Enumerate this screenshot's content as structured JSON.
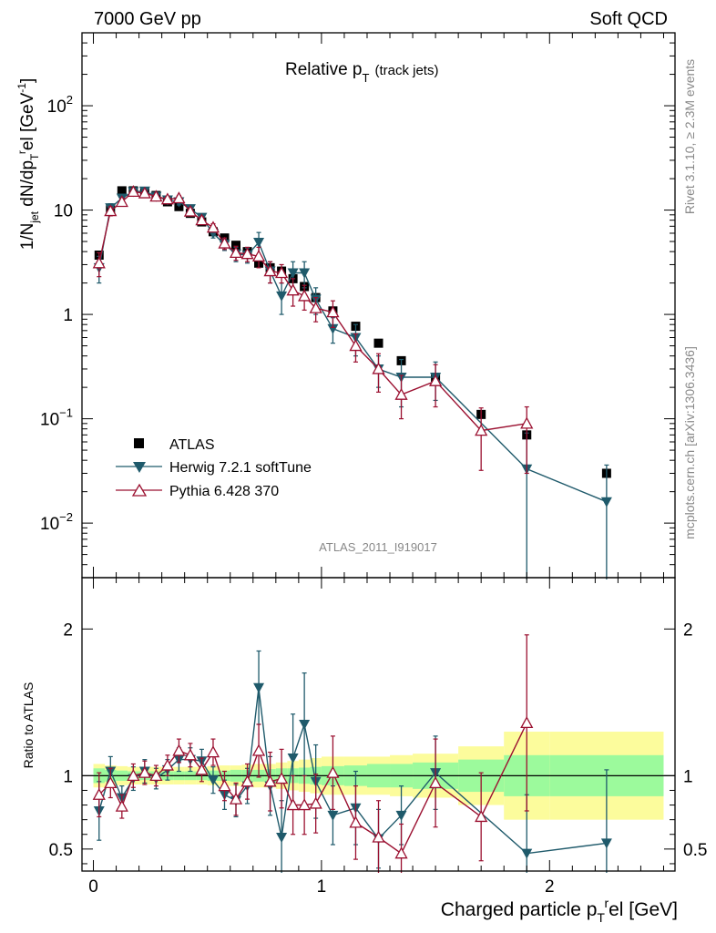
{
  "header": {
    "left": "7000 GeV pp",
    "right": "Soft QCD"
  },
  "side": {
    "rivet": "Rivet 3.1.10, ≥ 2.3M events",
    "mcplots": "mcplots.cern.ch [arXiv:1306.3436]"
  },
  "colors": {
    "atlas": "#000000",
    "herwig": "#1f5a6b",
    "pythia": "#9b1030",
    "band_inner": "#9cfa9c",
    "band_outer": "#fcfc9c"
  },
  "chart_data": [
    {
      "type": "scatter",
      "title": "Relative p_T (track jets)",
      "title_main": "Relative p",
      "title_sub": "T",
      "title_tail": "(track jets)",
      "ylabel": "1/N_jet dN/dp_T^rel [GeV^-1]",
      "yscale": "log",
      "ylim": [
        0.003,
        500
      ],
      "xlim": [
        -0.05,
        2.55
      ],
      "yticks": [
        {
          "value": 0.01,
          "base": "10",
          "exp": "−2"
        },
        {
          "value": 0.1,
          "base": "10",
          "exp": "−1"
        },
        {
          "value": 1,
          "base": "1",
          "exp": ""
        },
        {
          "value": 10,
          "base": "10",
          "exp": ""
        },
        {
          "value": 100,
          "base": "10",
          "exp": "2"
        }
      ],
      "watermark": "ATLAS_2011_I919017",
      "legend_position": "lower-left",
      "series": [
        {
          "name": "ATLAS",
          "marker": "square",
          "x": [
            0.025,
            0.075,
            0.125,
            0.175,
            0.225,
            0.275,
            0.325,
            0.375,
            0.425,
            0.475,
            0.525,
            0.575,
            0.625,
            0.675,
            0.725,
            0.775,
            0.825,
            0.875,
            0.925,
            0.975,
            1.05,
            1.15,
            1.25,
            1.35,
            1.5,
            1.7,
            1.9,
            2.25
          ],
          "y": [
            3.7,
            10.2,
            15.3,
            15.3,
            14.7,
            13.8,
            12.0,
            10.8,
            9.3,
            7.7,
            6.2,
            5.4,
            4.6,
            4.0,
            3.1,
            2.8,
            2.6,
            2.2,
            1.85,
            1.45,
            1.08,
            0.77,
            0.53,
            0.36,
            0.25,
            0.11,
            0.07,
            0.03
          ]
        },
        {
          "name": "Herwig 7.2.1 softTune",
          "marker": "triangle-down",
          "x": [
            0.025,
            0.075,
            0.125,
            0.175,
            0.225,
            0.275,
            0.325,
            0.375,
            0.425,
            0.475,
            0.525,
            0.575,
            0.625,
            0.675,
            0.725,
            0.775,
            0.825,
            0.875,
            0.925,
            0.975,
            1.05,
            1.15,
            1.25,
            1.35,
            1.5,
            1.9,
            2.25
          ],
          "y": [
            2.8,
            10.5,
            13.0,
            15.0,
            15.2,
            13.5,
            12.5,
            12.0,
            10.3,
            8.5,
            6.0,
            4.7,
            3.8,
            3.7,
            4.9,
            2.6,
            1.5,
            2.5,
            2.5,
            1.4,
            0.73,
            0.6,
            0.3,
            0.25,
            0.25,
            0.033,
            0.016
          ],
          "err_lo": [
            0.8,
            1.0,
            1.0,
            1.0,
            1.0,
            0.9,
            0.8,
            0.8,
            0.8,
            0.7,
            0.6,
            0.6,
            0.6,
            0.6,
            1.2,
            0.6,
            0.5,
            0.7,
            0.7,
            0.4,
            0.2,
            0.2,
            0.1,
            0.12,
            0.1,
            0.033,
            0.016
          ],
          "err_hi": [
            0.8,
            1.0,
            1.0,
            1.0,
            1.0,
            0.9,
            0.8,
            0.8,
            0.8,
            0.7,
            0.6,
            0.6,
            0.6,
            0.6,
            1.2,
            0.6,
            0.5,
            0.7,
            0.7,
            0.4,
            0.2,
            0.2,
            0.1,
            0.12,
            0.1,
            0.04,
            0.02
          ]
        },
        {
          "name": "Pythia 6.428 370",
          "marker": "triangle-up-open",
          "x": [
            0.025,
            0.075,
            0.125,
            0.175,
            0.225,
            0.275,
            0.325,
            0.375,
            0.425,
            0.475,
            0.525,
            0.575,
            0.625,
            0.675,
            0.725,
            0.775,
            0.825,
            0.875,
            0.925,
            0.975,
            1.05,
            1.15,
            1.25,
            1.35,
            1.5,
            1.7,
            1.9
          ],
          "y": [
            3.1,
            9.8,
            12.0,
            15.0,
            14.5,
            13.5,
            12.7,
            13.0,
            9.7,
            8.0,
            6.8,
            4.8,
            3.9,
            3.8,
            3.6,
            2.6,
            2.5,
            1.7,
            1.5,
            1.15,
            1.05,
            0.5,
            0.3,
            0.17,
            0.23,
            0.077,
            0.09
          ],
          "err_lo": [
            0.8,
            1.0,
            1.0,
            1.0,
            1.0,
            0.9,
            0.8,
            0.8,
            0.8,
            0.7,
            0.6,
            0.6,
            0.6,
            0.6,
            0.8,
            0.6,
            0.5,
            0.5,
            0.4,
            0.3,
            0.3,
            0.15,
            0.12,
            0.07,
            0.1,
            0.045,
            0.06
          ],
          "err_hi": [
            0.8,
            1.0,
            1.0,
            1.0,
            1.0,
            0.9,
            0.8,
            0.8,
            0.8,
            0.7,
            0.6,
            0.6,
            0.6,
            0.6,
            0.8,
            0.6,
            0.5,
            0.5,
            0.4,
            0.3,
            0.3,
            0.15,
            0.12,
            0.09,
            0.1,
            0.05,
            0.04
          ]
        }
      ]
    },
    {
      "type": "scatter",
      "title": "Ratio to ATLAS",
      "ylabel": "Ratio to ATLAS",
      "xlabel": "Charged particle p_T^rel [GeV]",
      "xlabel_main": "Charged particle p",
      "xlabel_sub": "T",
      "xlabel_sup": "r",
      "xlabel_tail": "el [GeV]",
      "ylim": [
        0.35,
        2.35
      ],
      "xlim": [
        -0.05,
        2.55
      ],
      "yticks": [
        0.5,
        1,
        2
      ],
      "xticks": [
        0,
        1,
        2
      ],
      "reference_line": 1,
      "bands": {
        "edges": [
          0.0,
          0.05,
          0.1,
          0.15,
          0.2,
          0.25,
          0.3,
          0.35,
          0.4,
          0.45,
          0.5,
          0.55,
          0.6,
          0.65,
          0.7,
          0.75,
          0.8,
          0.85,
          0.9,
          0.95,
          1.0,
          1.1,
          1.2,
          1.3,
          1.4,
          1.6,
          1.8,
          2.0,
          2.5
        ],
        "inner": [
          0.05,
          0.04,
          0.035,
          0.03,
          0.03,
          0.03,
          0.03,
          0.03,
          0.03,
          0.03,
          0.035,
          0.035,
          0.04,
          0.04,
          0.04,
          0.045,
          0.05,
          0.05,
          0.055,
          0.06,
          0.065,
          0.07,
          0.08,
          0.08,
          0.09,
          0.11,
          0.14,
          0.14
        ],
        "outer": [
          0.08,
          0.07,
          0.065,
          0.06,
          0.06,
          0.06,
          0.06,
          0.06,
          0.06,
          0.06,
          0.065,
          0.07,
          0.07,
          0.075,
          0.08,
          0.08,
          0.09,
          0.1,
          0.11,
          0.12,
          0.13,
          0.13,
          0.13,
          0.14,
          0.15,
          0.2,
          0.3,
          0.3
        ]
      },
      "series": [
        {
          "name": "Herwig 7.2.1 softTune",
          "marker": "triangle-down",
          "x": [
            0.025,
            0.075,
            0.125,
            0.175,
            0.225,
            0.275,
            0.325,
            0.375,
            0.425,
            0.475,
            0.525,
            0.575,
            0.625,
            0.675,
            0.725,
            0.775,
            0.825,
            0.875,
            0.925,
            0.975,
            1.05,
            1.15,
            1.25,
            1.35,
            1.5,
            1.9,
            2.25
          ],
          "y": [
            0.76,
            1.03,
            0.85,
            0.98,
            1.03,
            0.98,
            1.04,
            1.11,
            1.11,
            1.1,
            0.97,
            0.87,
            0.83,
            0.93,
            1.6,
            0.93,
            0.58,
            1.12,
            1.35,
            0.96,
            0.73,
            0.78,
            0.57,
            0.73,
            1.02,
            0.47,
            0.54
          ],
          "err_lo": [
            0.2,
            0.1,
            0.08,
            0.08,
            0.08,
            0.07,
            0.07,
            0.08,
            0.08,
            0.08,
            0.09,
            0.1,
            0.11,
            0.12,
            0.25,
            0.2,
            0.25,
            0.3,
            0.35,
            0.25,
            0.2,
            0.25,
            0.2,
            0.2,
            0.25,
            0.12,
            0.2
          ],
          "err_hi": [
            0.2,
            0.1,
            0.08,
            0.08,
            0.08,
            0.07,
            0.07,
            0.08,
            0.08,
            0.08,
            0.09,
            0.1,
            0.11,
            0.12,
            0.25,
            0.2,
            0.25,
            0.3,
            0.35,
            0.25,
            0.2,
            0.25,
            0.2,
            0.2,
            0.25,
            0.4,
            0.5
          ]
        },
        {
          "name": "Pythia 6.428 370",
          "marker": "triangle-up-open",
          "x": [
            0.025,
            0.075,
            0.125,
            0.175,
            0.225,
            0.275,
            0.325,
            0.375,
            0.425,
            0.475,
            0.525,
            0.575,
            0.625,
            0.675,
            0.725,
            0.775,
            0.825,
            0.875,
            0.925,
            0.975,
            1.05,
            1.15,
            1.25,
            1.35,
            1.5,
            1.7,
            1.9
          ],
          "y": [
            0.87,
            0.95,
            0.79,
            1.0,
            1.02,
            1.0,
            1.07,
            1.17,
            1.14,
            1.04,
            1.16,
            0.93,
            0.84,
            0.96,
            1.17,
            0.96,
            0.98,
            0.8,
            0.8,
            0.81,
            1.02,
            0.68,
            0.58,
            0.47,
            0.95,
            0.72,
            1.36
          ],
          "err_lo": [
            0.15,
            0.1,
            0.08,
            0.08,
            0.08,
            0.07,
            0.07,
            0.08,
            0.08,
            0.08,
            0.09,
            0.1,
            0.11,
            0.12,
            0.18,
            0.2,
            0.2,
            0.2,
            0.2,
            0.2,
            0.25,
            0.25,
            0.25,
            0.2,
            0.3,
            0.3,
            0.6
          ],
          "err_hi": [
            0.15,
            0.1,
            0.08,
            0.08,
            0.08,
            0.07,
            0.07,
            0.08,
            0.08,
            0.08,
            0.09,
            0.1,
            0.11,
            0.12,
            0.18,
            0.2,
            0.2,
            0.2,
            0.2,
            0.2,
            0.25,
            0.25,
            0.25,
            0.2,
            0.3,
            0.3,
            0.6
          ]
        }
      ]
    }
  ]
}
